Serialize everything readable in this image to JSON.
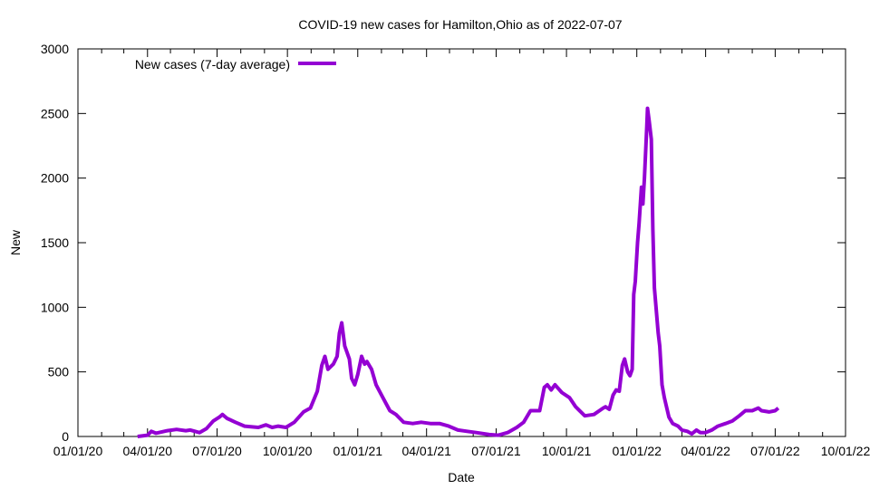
{
  "chart_data": {
    "type": "line",
    "title": "COVID-19 new cases for Hamilton,Ohio as of 2022-07-07",
    "xlabel": "Date",
    "ylabel": "New",
    "xlim": [
      "2020-01-01",
      "2022-10-01"
    ],
    "ylim": [
      0,
      3000
    ],
    "x_ticks": [
      "01/01/20",
      "04/01/20",
      "07/01/20",
      "10/01/20",
      "01/01/21",
      "04/01/21",
      "07/01/21",
      "10/01/21",
      "01/01/22",
      "04/01/22",
      "07/01/22",
      "10/01/22"
    ],
    "x_tick_dates": [
      "2020-01-01",
      "2020-04-01",
      "2020-07-01",
      "2020-10-01",
      "2021-01-01",
      "2021-04-01",
      "2021-07-01",
      "2021-10-01",
      "2022-01-01",
      "2022-04-01",
      "2022-07-01",
      "2022-10-01"
    ],
    "y_ticks": [
      0,
      500,
      1000,
      1500,
      2000,
      2500,
      3000
    ],
    "grid": false,
    "legend": "top-left",
    "series": [
      {
        "name": "New cases (7-day average)",
        "color": "#9400D3",
        "points": [
          [
            "2020-03-19",
            0
          ],
          [
            "2020-04-01",
            10
          ],
          [
            "2020-04-06",
            40
          ],
          [
            "2020-04-12",
            25
          ],
          [
            "2020-04-27",
            45
          ],
          [
            "2020-05-09",
            55
          ],
          [
            "2020-05-21",
            45
          ],
          [
            "2020-05-27",
            50
          ],
          [
            "2020-06-08",
            30
          ],
          [
            "2020-06-17",
            60
          ],
          [
            "2020-06-26",
            120
          ],
          [
            "2020-07-04",
            150
          ],
          [
            "2020-07-08",
            170
          ],
          [
            "2020-07-14",
            140
          ],
          [
            "2020-07-25",
            110
          ],
          [
            "2020-08-06",
            80
          ],
          [
            "2020-08-24",
            70
          ],
          [
            "2020-09-03",
            90
          ],
          [
            "2020-09-11",
            70
          ],
          [
            "2020-09-19",
            80
          ],
          [
            "2020-09-29",
            70
          ],
          [
            "2020-10-10",
            110
          ],
          [
            "2020-10-22",
            190
          ],
          [
            "2020-10-31",
            220
          ],
          [
            "2020-11-09",
            350
          ],
          [
            "2020-11-15",
            550
          ],
          [
            "2020-11-19",
            620
          ],
          [
            "2020-11-23",
            520
          ],
          [
            "2020-11-30",
            560
          ],
          [
            "2020-12-05",
            620
          ],
          [
            "2020-12-08",
            800
          ],
          [
            "2020-12-11",
            880
          ],
          [
            "2020-12-15",
            700
          ],
          [
            "2020-12-21",
            600
          ],
          [
            "2020-12-24",
            450
          ],
          [
            "2020-12-28",
            400
          ],
          [
            "2021-01-01",
            480
          ],
          [
            "2021-01-06",
            620
          ],
          [
            "2021-01-10",
            560
          ],
          [
            "2021-01-13",
            580
          ],
          [
            "2021-01-19",
            520
          ],
          [
            "2021-01-25",
            400
          ],
          [
            "2021-02-02",
            310
          ],
          [
            "2021-02-12",
            200
          ],
          [
            "2021-02-20",
            170
          ],
          [
            "2021-03-02",
            110
          ],
          [
            "2021-03-14",
            100
          ],
          [
            "2021-03-25",
            110
          ],
          [
            "2021-04-06",
            100
          ],
          [
            "2021-04-18",
            100
          ],
          [
            "2021-04-30",
            80
          ],
          [
            "2021-05-12",
            50
          ],
          [
            "2021-05-24",
            40
          ],
          [
            "2021-06-05",
            30
          ],
          [
            "2021-06-22",
            15
          ],
          [
            "2021-07-04",
            10
          ],
          [
            "2021-07-16",
            30
          ],
          [
            "2021-07-28",
            70
          ],
          [
            "2021-08-06",
            110
          ],
          [
            "2021-08-15",
            200
          ],
          [
            "2021-08-27",
            200
          ],
          [
            "2021-09-02",
            380
          ],
          [
            "2021-09-06",
            400
          ],
          [
            "2021-09-11",
            360
          ],
          [
            "2021-09-16",
            400
          ],
          [
            "2021-09-25",
            340
          ],
          [
            "2021-10-05",
            300
          ],
          [
            "2021-10-13",
            230
          ],
          [
            "2021-10-25",
            160
          ],
          [
            "2021-11-06",
            170
          ],
          [
            "2021-11-18",
            220
          ],
          [
            "2021-11-21",
            230
          ],
          [
            "2021-11-26",
            210
          ],
          [
            "2021-12-01",
            320
          ],
          [
            "2021-12-05",
            360
          ],
          [
            "2021-12-09",
            350
          ],
          [
            "2021-12-13",
            550
          ],
          [
            "2021-12-16",
            600
          ],
          [
            "2021-12-20",
            500
          ],
          [
            "2021-12-23",
            470
          ],
          [
            "2021-12-26",
            520
          ],
          [
            "2021-12-28",
            1100
          ],
          [
            "2021-12-30",
            1200
          ],
          [
            "2022-01-02",
            1500
          ],
          [
            "2022-01-04",
            1650
          ],
          [
            "2022-01-07",
            1930
          ],
          [
            "2022-01-09",
            1800
          ],
          [
            "2022-01-11",
            2000
          ],
          [
            "2022-01-14",
            2400
          ],
          [
            "2022-01-15",
            2540
          ],
          [
            "2022-01-17",
            2450
          ],
          [
            "2022-01-20",
            2300
          ],
          [
            "2022-01-22",
            1600
          ],
          [
            "2022-01-24",
            1150
          ],
          [
            "2022-01-29",
            800
          ],
          [
            "2022-01-31",
            700
          ],
          [
            "2022-02-03",
            400
          ],
          [
            "2022-02-06",
            300
          ],
          [
            "2022-02-12",
            150
          ],
          [
            "2022-02-17",
            100
          ],
          [
            "2022-02-24",
            80
          ],
          [
            "2022-03-01",
            50
          ],
          [
            "2022-03-08",
            40
          ],
          [
            "2022-03-14",
            20
          ],
          [
            "2022-03-20",
            50
          ],
          [
            "2022-03-25",
            30
          ],
          [
            "2022-04-01",
            30
          ],
          [
            "2022-04-09",
            50
          ],
          [
            "2022-04-17",
            80
          ],
          [
            "2022-04-27",
            100
          ],
          [
            "2022-05-06",
            120
          ],
          [
            "2022-05-15",
            160
          ],
          [
            "2022-05-23",
            200
          ],
          [
            "2022-06-01",
            200
          ],
          [
            "2022-06-09",
            220
          ],
          [
            "2022-06-13",
            200
          ],
          [
            "2022-06-23",
            190
          ],
          [
            "2022-07-01",
            200
          ],
          [
            "2022-07-05",
            220
          ]
        ]
      }
    ]
  }
}
